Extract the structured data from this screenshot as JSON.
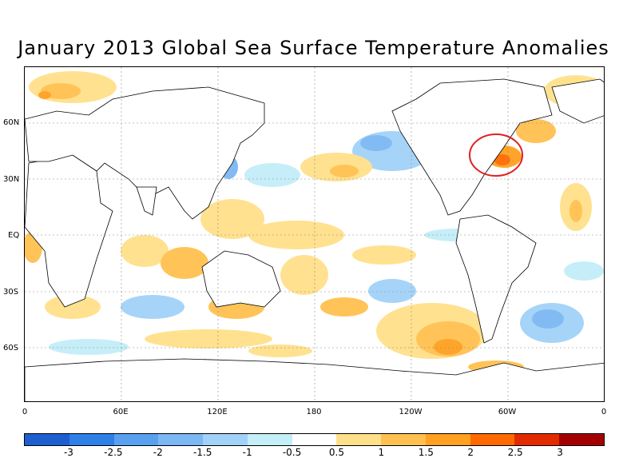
{
  "title": "January 2013 Global Sea Surface Temperature Anomalies",
  "lat_labels": [
    "60N",
    "30N",
    "EQ",
    "30S",
    "60S"
  ],
  "lon_labels": [
    "0",
    "60E",
    "120E",
    "180",
    "120W",
    "60W",
    "0"
  ],
  "colorbar": {
    "colors": [
      "#1e5fd0",
      "#2f7fe6",
      "#5aa0f0",
      "#7cb8f4",
      "#a2d2f8",
      "#c4eef8",
      "#ffffff",
      "#ffe08a",
      "#ffc050",
      "#ffa020",
      "#ff6a00",
      "#e22c00",
      "#a50000"
    ],
    "labels": [
      "-3",
      "-2.5",
      "-2",
      "-1.5",
      "-1",
      "-0.5",
      "0.5",
      "1",
      "1.5",
      "2",
      "2.5",
      "3"
    ]
  },
  "highlight": {
    "region": "US Northeast coast",
    "color": "#e02020"
  }
}
